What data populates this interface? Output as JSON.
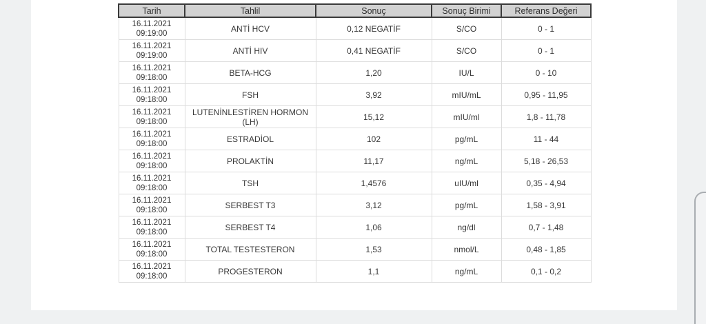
{
  "colors": {
    "page_bg": "#eff1f2",
    "panel_bg": "#ffffff",
    "header_bg": "#d2d2d2",
    "header_border": "#3a3a3a",
    "cell_border": "#dcdcdc",
    "text": "#383838"
  },
  "table": {
    "headers": [
      "Tarih",
      "Tahlil",
      "Sonuç",
      "Sonuç Birimi",
      "Referans Değeri"
    ],
    "rows": [
      {
        "date": "16.11.2021",
        "time": "09:19:00",
        "test": "ANTİ HCV",
        "result": "0,12 NEGATİF",
        "unit": "S/CO",
        "reference": "0 - 1"
      },
      {
        "date": "16.11.2021",
        "time": "09:19:00",
        "test": "ANTİ HIV",
        "result": "0,41 NEGATİF",
        "unit": "S/CO",
        "reference": "0 - 1"
      },
      {
        "date": "16.11.2021",
        "time": "09:18:00",
        "test": "BETA-HCG",
        "result": "1,20",
        "unit": "IU/L",
        "reference": "0 - 10"
      },
      {
        "date": "16.11.2021",
        "time": "09:18:00",
        "test": "FSH",
        "result": "3,92",
        "unit": "mIU/mL",
        "reference": "0,95 - 11,95"
      },
      {
        "date": "16.11.2021",
        "time": "09:18:00",
        "test": "LUTENİNLESTİREN HORMON (LH)",
        "result": "15,12",
        "unit": "mIU/ml",
        "reference": "1,8 - 11,78"
      },
      {
        "date": "16.11.2021",
        "time": "09:18:00",
        "test": "ESTRADİOL",
        "result": "102",
        "unit": "pg/mL",
        "reference": "11 - 44"
      },
      {
        "date": "16.11.2021",
        "time": "09:18:00",
        "test": "PROLAKTİN",
        "result": "11,17",
        "unit": "ng/mL",
        "reference": "5,18 - 26,53"
      },
      {
        "date": "16.11.2021",
        "time": "09:18:00",
        "test": "TSH",
        "result": "1,4576",
        "unit": "uIU/ml",
        "reference": "0,35 - 4,94"
      },
      {
        "date": "16.11.2021",
        "time": "09:18:00",
        "test": "SERBEST T3",
        "result": "3,12",
        "unit": "pg/mL",
        "reference": "1,58 - 3,91"
      },
      {
        "date": "16.11.2021",
        "time": "09:18:00",
        "test": "SERBEST T4",
        "result": "1,06",
        "unit": "ng/dl",
        "reference": "0,7 - 1,48"
      },
      {
        "date": "16.11.2021",
        "time": "09:18:00",
        "test": "TOTAL TESTESTERON",
        "result": "1,53",
        "unit": "nmol/L",
        "reference": "0,48 - 1,85"
      },
      {
        "date": "16.11.2021",
        "time": "09:18:00",
        "test": "PROGESTERON",
        "result": "1,1",
        "unit": "ng/mL",
        "reference": "0,1 - 0,2"
      }
    ]
  }
}
